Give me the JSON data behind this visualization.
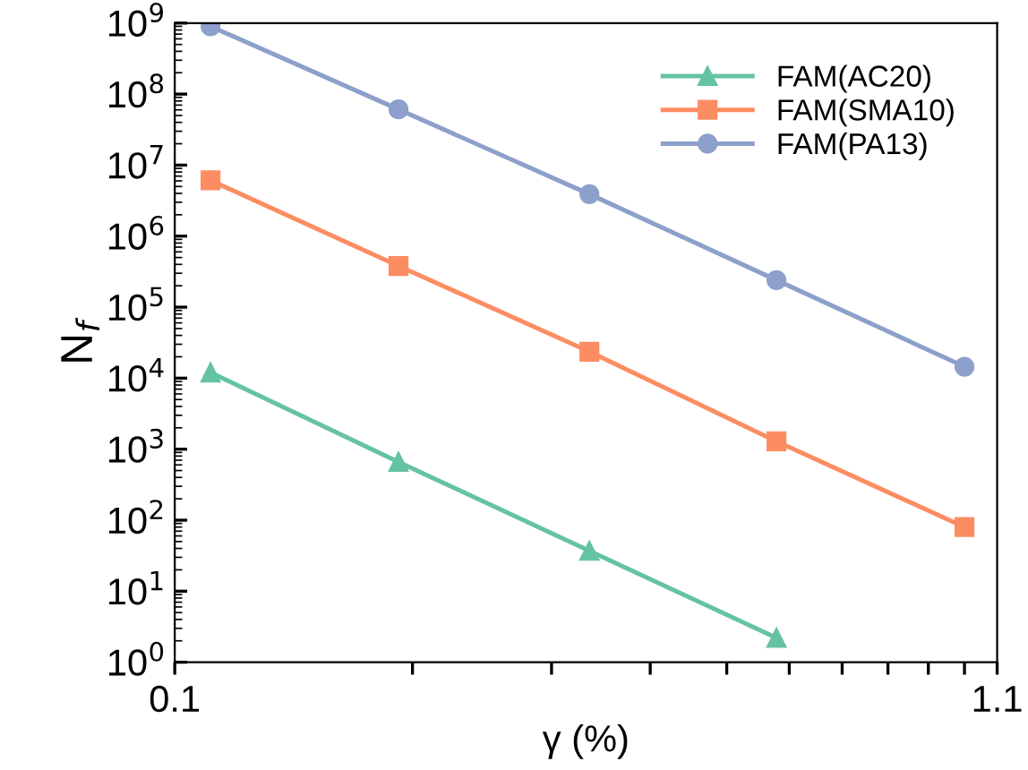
{
  "chart_data": {
    "type": "line",
    "xlabel": "γ (%)",
    "ylabel": "N$_{f}$",
    "log": "xy",
    "xlim": [
      0.1,
      1.1
    ],
    "ylim": [
      1,
      1000000000
    ],
    "xticks": [
      0.1,
      {
        "value": 0.2,
        "label": null
      },
      {
        "value": 0.3,
        "label": null
      },
      {
        "value": 0.4,
        "label": null
      },
      {
        "value": 0.5,
        "label": null
      },
      {
        "value": 0.6,
        "label": null
      },
      {
        "value": 0.7,
        "label": null
      },
      {
        "value": 0.8,
        "label": null
      },
      {
        "value": 0.9,
        "label": null
      },
      {
        "value": 1.0,
        "label": null
      },
      1.1
    ],
    "yticks": [
      {
        "value": 1,
        "label": "10$^{0}$"
      },
      {
        "value": 10,
        "label": "10$^{1}$"
      },
      {
        "value": 100,
        "label": "10$^{2}$"
      },
      {
        "value": 1000,
        "label": "10$^{3}$"
      },
      {
        "value": 10000,
        "label": "10$^{4}$"
      },
      {
        "value": 100000,
        "label": "10$^{5}$"
      },
      {
        "value": 1000000,
        "label": "10$^{6}$"
      },
      {
        "value": 10000000,
        "label": "10$^{7}$"
      },
      {
        "value": 100000000,
        "label": "10$^{8}$"
      },
      {
        "value": 1000000000,
        "label": "10$^{9}$"
      }
    ],
    "grid": false,
    "legend": "top right",
    "line_style": "solid",
    "series": [
      {
        "name": "FAM(AC20)",
        "color": "#66c2a5",
        "marker": "triangle",
        "x": [
          0.111,
          0.192,
          0.335,
          0.578
        ],
        "values": [
          12000,
          660,
          37,
          2.2
        ]
      },
      {
        "name": "FAM(SMA10)",
        "color": "#fc8d62",
        "marker": "square",
        "x": [
          0.111,
          0.192,
          0.335,
          0.578,
          1.0
        ],
        "values": [
          6100000,
          380000,
          23600,
          1290,
          80
        ]
      },
      {
        "name": "FAM(PA13)",
        "color": "#8da0cb",
        "marker": "circle",
        "x": [
          0.111,
          0.192,
          0.335,
          0.578,
          1.0
        ],
        "values": [
          900000000,
          61000000,
          3900000,
          240000,
          14500
        ]
      }
    ]
  }
}
